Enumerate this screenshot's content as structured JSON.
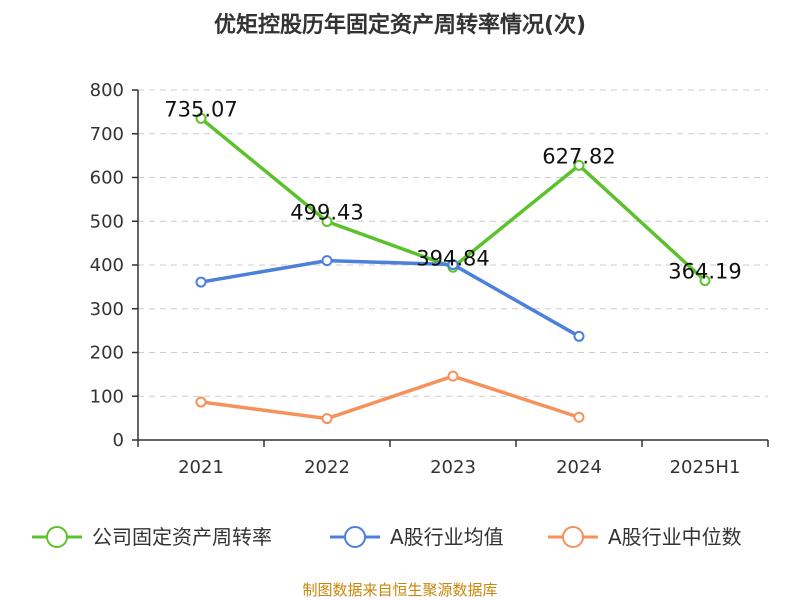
{
  "chart_data": {
    "type": "line",
    "title": "优矩控股历年固定资产周转率情况(次)",
    "categories": [
      "2021",
      "2022",
      "2023",
      "2024",
      "2025H1"
    ],
    "ylim": [
      0,
      800
    ],
    "yticks": [
      0,
      100,
      200,
      300,
      400,
      500,
      600,
      700,
      800
    ],
    "grid": true,
    "legend_position": "bottom",
    "series": [
      {
        "name": "公司固定资产周转率",
        "color": "#5cc22b",
        "values": [
          735.07,
          499.43,
          394.84,
          627.82,
          364.19
        ],
        "labels": [
          "735.07",
          "499.43",
          "394.84",
          "627.82",
          "364.19"
        ]
      },
      {
        "name": "A股行业均值",
        "color": "#4d7fdc",
        "values": [
          361,
          410,
          401,
          237,
          null
        ]
      },
      {
        "name": "A股行业中位数",
        "color": "#f7915a",
        "values": [
          87,
          49,
          146,
          52,
          null
        ]
      }
    ]
  },
  "source": "制图数据来自恒生聚源数据库"
}
